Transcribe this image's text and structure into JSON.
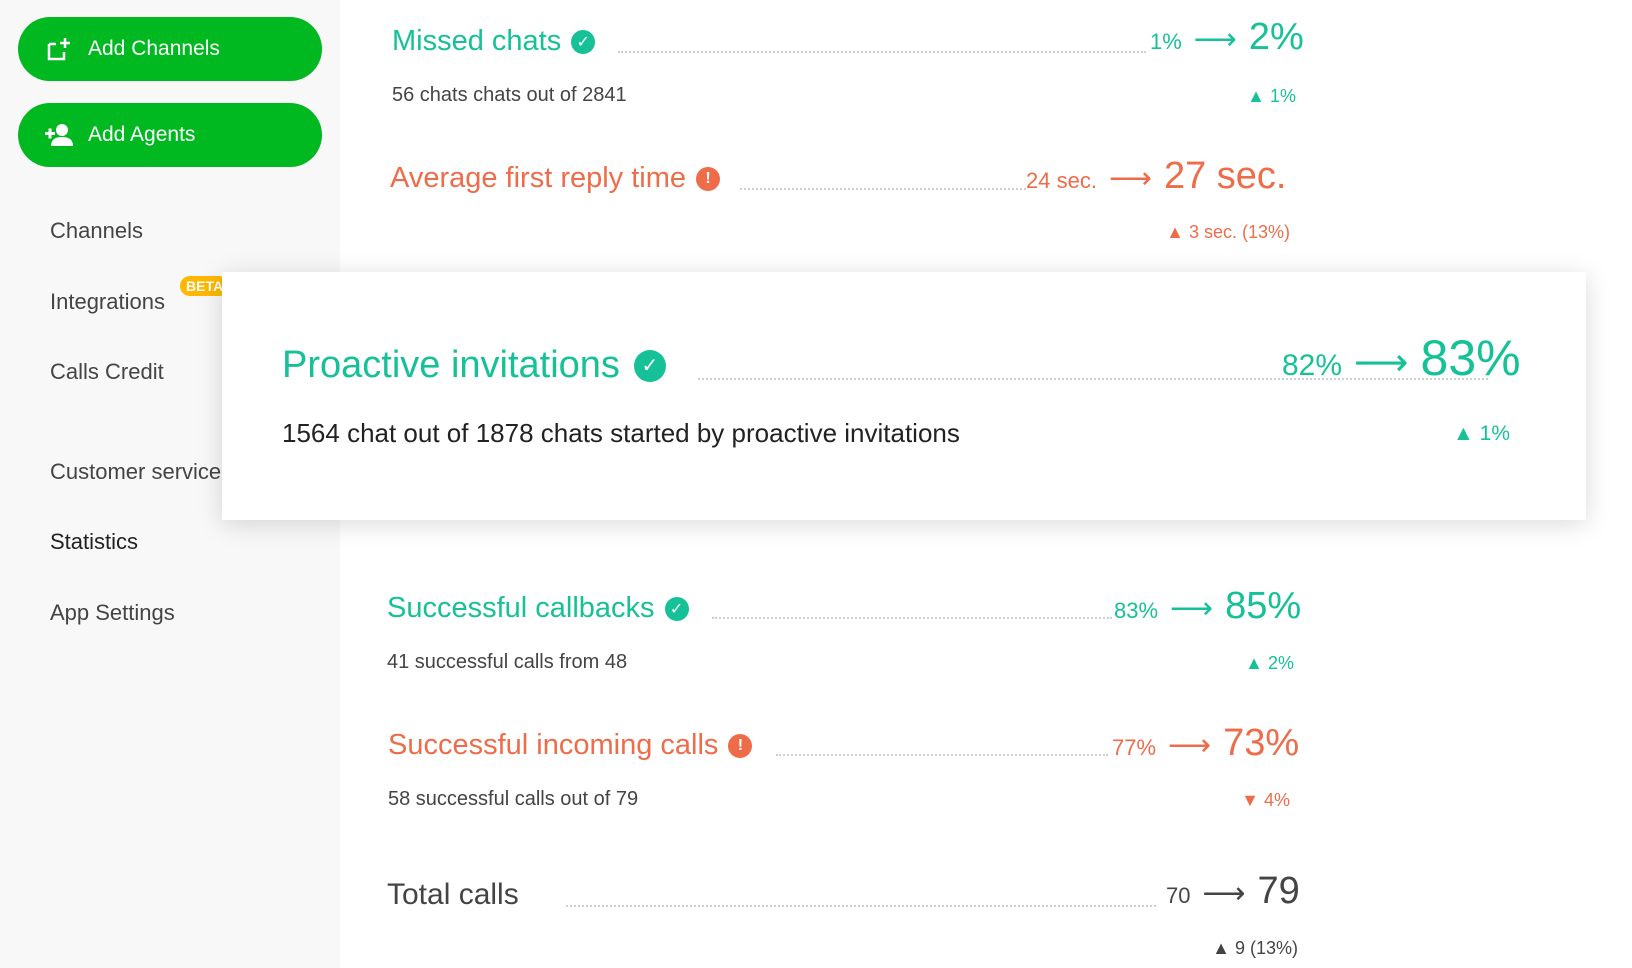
{
  "sidebar": {
    "add_channels_label": "Add Channels",
    "add_agents_label": "Add Agents",
    "items": [
      {
        "label": "Channels"
      },
      {
        "label": "Integrations"
      },
      {
        "label": "Calls Credit"
      },
      {
        "label": "Customer service"
      },
      {
        "label": "Statistics"
      },
      {
        "label": "App Settings"
      }
    ],
    "beta_badge": "BETA"
  },
  "metrics": {
    "missed_chats": {
      "title": "Missed chats",
      "from": "1%",
      "to": "2%",
      "arrow": "⟶",
      "sub": "56 chats chats out of 2841",
      "delta": "▲ 1%",
      "status": "check-icon"
    },
    "avg_first_reply": {
      "title": "Average first reply time",
      "from": "24 sec.",
      "to": "27 sec.",
      "arrow": "⟶",
      "sub": "",
      "delta": "▲ 3 sec. (13%)",
      "status": "exclamation-icon"
    },
    "proactive": {
      "title": "Proactive invitations",
      "from": "82%",
      "to": "83%",
      "arrow": "⟶",
      "sub": "1564 chat out of 1878 chats started by proactive invitations",
      "delta": "▲ 1%",
      "status": "check-icon"
    },
    "callbacks": {
      "title": "Successful callbacks",
      "from": "83%",
      "to": "85%",
      "arrow": "⟶",
      "sub": "41 successful calls from 48",
      "delta": "▲ 2%",
      "status": "check-icon"
    },
    "incoming": {
      "title": "Successful incoming calls",
      "from": "77%",
      "to": "73%",
      "arrow": "⟶",
      "sub": "58 successful calls out of 79",
      "delta": "▼ 4%",
      "status": "exclamation-icon"
    },
    "total_calls": {
      "title": "Total calls",
      "from": "70",
      "to": "79",
      "arrow": "⟶",
      "sub": "",
      "delta": "▲ 9 (13%)"
    }
  },
  "colors": {
    "positive": "#16c198",
    "negative": "#ee6c4a",
    "button": "#00b81f"
  }
}
